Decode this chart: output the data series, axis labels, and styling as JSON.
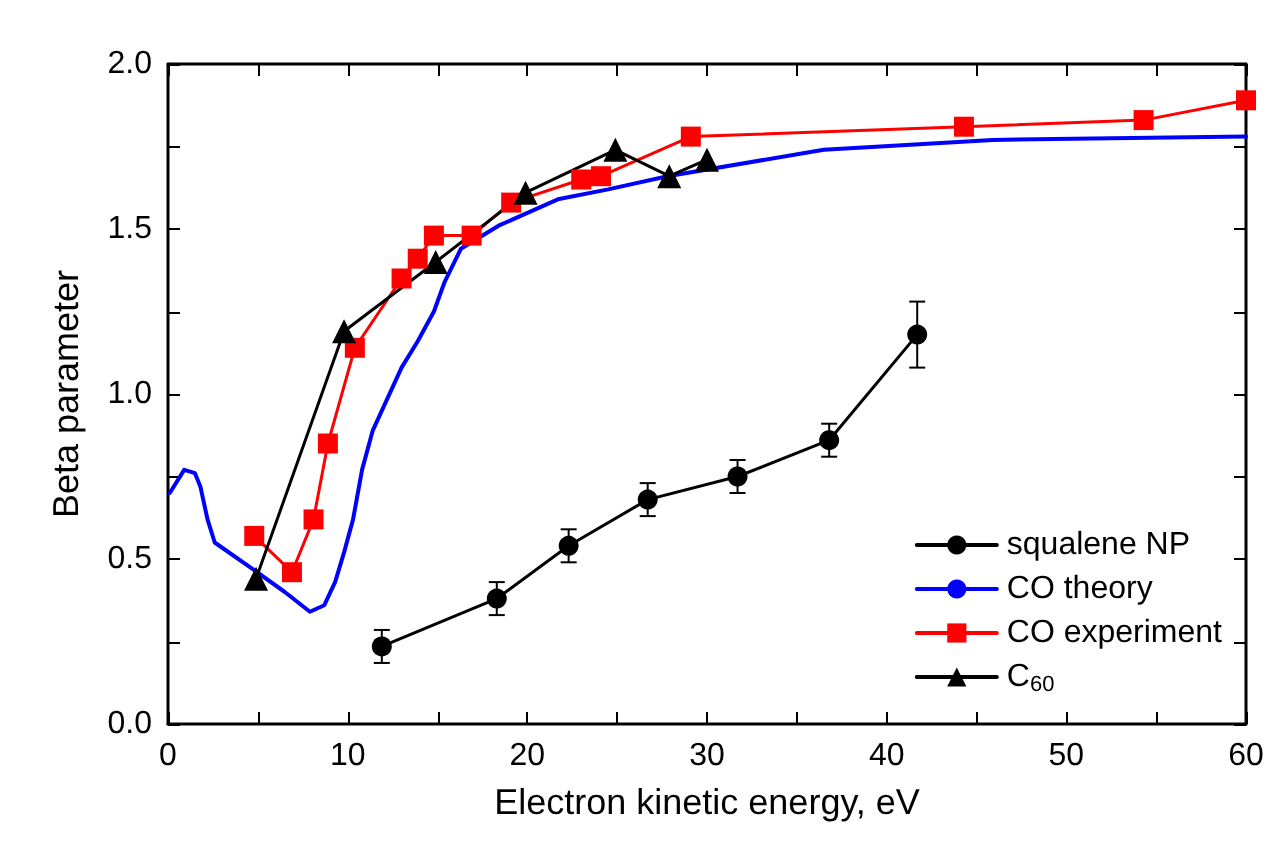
{
  "chart_data": {
    "type": "line",
    "xlabel": "Electron kinetic energy, eV",
    "ylabel": "Beta parameter",
    "xlim": [
      0,
      60
    ],
    "xticks": [
      0,
      {
        "value": 5,
        "label": null
      },
      10,
      {
        "value": 15,
        "label": null
      },
      20,
      {
        "value": 25,
        "label": null
      },
      30,
      {
        "value": 35,
        "label": null
      },
      40,
      {
        "value": 45,
        "label": null
      },
      50,
      {
        "value": 55,
        "label": null
      },
      60
    ],
    "ylim": [
      0,
      2
    ],
    "yticks": [
      "0.0",
      {
        "value": 0.25,
        "label": null
      },
      {
        "value": 0.5,
        "label": "0.5"
      },
      {
        "value": 0.75,
        "label": null
      },
      {
        "value": 1,
        "label": "1.0"
      },
      {
        "value": 1.25,
        "label": null
      },
      {
        "value": 1.5,
        "label": "1.5"
      },
      {
        "value": 1.75,
        "label": null
      },
      {
        "value": 2,
        "label": "2.0"
      }
    ],
    "grid": false,
    "legend": "bottom right",
    "line_style": "solid",
    "series": [
      {
        "name": "squalene NP",
        "color": "#000000",
        "marker": "circle",
        "x": [
          11.9,
          18.3,
          22.3,
          26.7,
          31.7,
          36.8,
          41.7
        ],
        "values": [
          0.235,
          0.38,
          0.54,
          0.68,
          0.75,
          0.86,
          1.18
        ],
        "errors": [
          0.05,
          0.05,
          0.05,
          0.05,
          0.05,
          0.05,
          0.1
        ]
      },
      {
        "name": "CO theory",
        "color": "#0000ff",
        "marker": "none",
        "x": [
          0.1,
          0.9,
          1.5,
          1.8,
          2.2,
          2.6,
          4.7,
          6.5,
          7.9,
          8.7,
          9.3,
          9.8,
          10.3,
          10.8,
          11.4,
          13,
          13.9,
          14.8,
          15.4,
          16.3,
          18.4,
          21.7,
          24.5,
          27.8,
          36.5,
          45.9,
          60
        ],
        "values": [
          0.7,
          0.77,
          0.76,
          0.72,
          0.62,
          0.55,
          0.47,
          0.4,
          0.34,
          0.36,
          0.43,
          0.52,
          0.62,
          0.77,
          0.89,
          1.08,
          1.16,
          1.25,
          1.34,
          1.44,
          1.51,
          1.59,
          1.62,
          1.66,
          1.74,
          1.77,
          1.78
        ]
      },
      {
        "name": "CO experiment",
        "color": "#ff0000",
        "marker": "square",
        "x": [
          4.8,
          6.9,
          8.1,
          8.9,
          10.4,
          13,
          13.9,
          14.8,
          16.9,
          19.1,
          23,
          24.1,
          29.1,
          44.3,
          54.3,
          60
        ],
        "values": [
          0.57,
          0.46,
          0.62,
          0.85,
          1.14,
          1.35,
          1.41,
          1.48,
          1.48,
          1.58,
          1.65,
          1.66,
          1.78,
          1.81,
          1.83,
          1.89
        ]
      },
      {
        "name": "C$_{60}$",
        "color": "#000000",
        "marker": "triangle",
        "x": [
          4.9,
          9.8,
          14.9,
          19.9,
          24.9,
          27.9,
          30
        ],
        "values": [
          0.44,
          1.19,
          1.4,
          1.61,
          1.74,
          1.66,
          1.71
        ]
      }
    ]
  }
}
